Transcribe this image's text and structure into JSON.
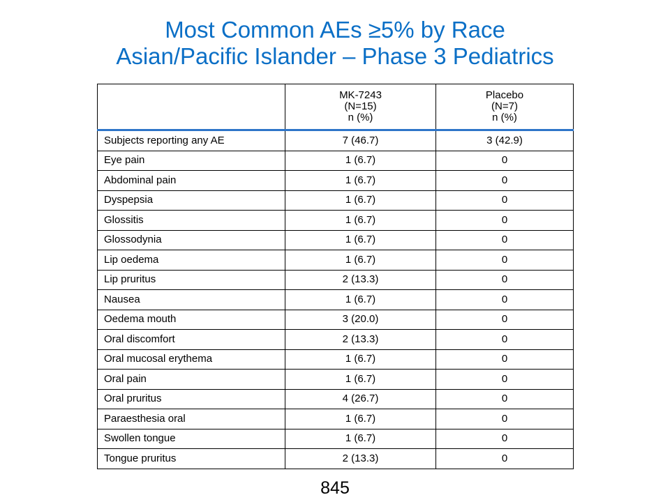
{
  "slide": {
    "title_line1": "Most Common AEs ≥5% by Race",
    "title_line2": "Asian/Pacific Islander – Phase 3 Pediatrics",
    "page_number": "845"
  },
  "table": {
    "columns": [
      {
        "lines": []
      },
      {
        "lines": [
          "MK-7243",
          "(N=15)",
          "n (%)"
        ]
      },
      {
        "lines": [
          "Placebo",
          "(N=7)",
          "n (%)"
        ]
      }
    ],
    "rows": [
      {
        "term": "Subjects reporting any AE",
        "mk7243": "7 (46.7)",
        "placebo": "3 (42.9)"
      },
      {
        "term": "Eye pain",
        "mk7243": "1 (6.7)",
        "placebo": "0"
      },
      {
        "term": "Abdominal pain",
        "mk7243": "1 (6.7)",
        "placebo": "0"
      },
      {
        "term": "Dyspepsia",
        "mk7243": "1 (6.7)",
        "placebo": "0"
      },
      {
        "term": "Glossitis",
        "mk7243": "1 (6.7)",
        "placebo": "0"
      },
      {
        "term": "Glossodynia",
        "mk7243": "1 (6.7)",
        "placebo": "0"
      },
      {
        "term": "Lip oedema",
        "mk7243": "1 (6.7)",
        "placebo": "0"
      },
      {
        "term": "Lip pruritus",
        "mk7243": "2 (13.3)",
        "placebo": "0"
      },
      {
        "term": "Nausea",
        "mk7243": "1 (6.7)",
        "placebo": "0"
      },
      {
        "term": "Oedema mouth",
        "mk7243": "3 (20.0)",
        "placebo": "0"
      },
      {
        "term": "Oral discomfort",
        "mk7243": "2 (13.3)",
        "placebo": "0"
      },
      {
        "term": "Oral mucosal erythema",
        "mk7243": "1 (6.7)",
        "placebo": "0"
      },
      {
        "term": "Oral pain",
        "mk7243": "1 (6.7)",
        "placebo": "0"
      },
      {
        "term": "Oral pruritus",
        "mk7243": "4 (26.7)",
        "placebo": "0"
      },
      {
        "term": "Paraesthesia oral",
        "mk7243": "1 (6.7)",
        "placebo": "0"
      },
      {
        "term": "Swollen tongue",
        "mk7243": "1 (6.7)",
        "placebo": "0"
      },
      {
        "term": "Tongue pruritus",
        "mk7243": "2 (13.3)",
        "placebo": "0"
      }
    ]
  },
  "colors": {
    "title": "#0B6FC6",
    "header_rule": "#2E75C8"
  }
}
